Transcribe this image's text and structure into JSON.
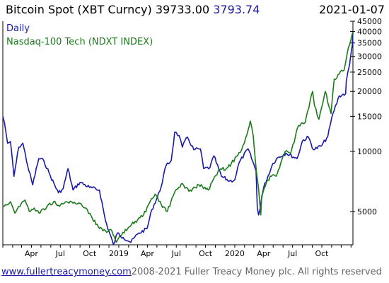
{
  "header": {
    "title": "Bitcoin Spot (XBT Curncy)",
    "value": "39733.00",
    "change": "3793.74",
    "date": "2021-01-07"
  },
  "footer": {
    "link": "www.fullertreacymoney.com",
    "copyright": "2008-2021 Fuller Treacy Money plc. All rights reserved"
  },
  "colors": {
    "bitcoin": "#1a1aa8",
    "nasdaq": "#1c7a1c",
    "axis": "#000000"
  },
  "chart_data": {
    "type": "line",
    "y_scale": "log",
    "ylim": [
      3400,
      45000
    ],
    "xlim": [
      "2018-01-01",
      "2021-01-07"
    ],
    "y_ticks": [
      5000,
      10000,
      15000,
      20000,
      25000,
      30000,
      35000,
      40000,
      45000
    ],
    "x_ticks": [
      {
        "label": "Apr",
        "date": "2018-04-01"
      },
      {
        "label": "Jul",
        "date": "2018-07-01"
      },
      {
        "label": "Oct",
        "date": "2018-10-01"
      },
      {
        "label": "2019",
        "date": "2019-01-01"
      },
      {
        "label": "Apr",
        "date": "2019-04-01"
      },
      {
        "label": "Jul",
        "date": "2019-07-01"
      },
      {
        "label": "Oct",
        "date": "2019-10-01"
      },
      {
        "label": "2020",
        "date": "2020-01-01"
      },
      {
        "label": "Apr",
        "date": "2020-04-01"
      },
      {
        "label": "Jul",
        "date": "2020-07-01"
      },
      {
        "label": "Oct",
        "date": "2020-10-01"
      }
    ],
    "legend_position": "top-left",
    "series": [
      {
        "name": "Daily",
        "color": "#1a1aa8",
        "points": [
          [
            "2018-01-01",
            15000
          ],
          [
            "2018-01-06",
            14000
          ],
          [
            "2018-01-16",
            11000
          ],
          [
            "2018-01-25",
            11200
          ],
          [
            "2018-02-05",
            7500
          ],
          [
            "2018-02-20",
            10500
          ],
          [
            "2018-03-05",
            11000
          ],
          [
            "2018-03-20",
            8500
          ],
          [
            "2018-04-05",
            6800
          ],
          [
            "2018-04-24",
            9200
          ],
          [
            "2018-05-10",
            9000
          ],
          [
            "2018-05-31",
            7500
          ],
          [
            "2018-06-25",
            6200
          ],
          [
            "2018-07-10",
            6500
          ],
          [
            "2018-07-25",
            8200
          ],
          [
            "2018-08-10",
            6400
          ],
          [
            "2018-09-01",
            7000
          ],
          [
            "2018-10-01",
            6600
          ],
          [
            "2018-11-01",
            6400
          ],
          [
            "2018-11-20",
            4500
          ],
          [
            "2018-12-15",
            3400
          ],
          [
            "2018-12-28",
            3900
          ],
          [
            "2019-01-15",
            3700
          ],
          [
            "2019-02-08",
            3500
          ],
          [
            "2019-03-01",
            3850
          ],
          [
            "2019-03-31",
            4100
          ],
          [
            "2019-04-15",
            5100
          ],
          [
            "2019-05-10",
            6300
          ],
          [
            "2019-05-30",
            8500
          ],
          [
            "2019-06-15",
            9000
          ],
          [
            "2019-06-26",
            12500
          ],
          [
            "2019-07-10",
            12000
          ],
          [
            "2019-07-20",
            10500
          ],
          [
            "2019-08-05",
            11800
          ],
          [
            "2019-08-25",
            10200
          ],
          [
            "2019-09-15",
            10300
          ],
          [
            "2019-09-25",
            8200
          ],
          [
            "2019-10-15",
            8300
          ],
          [
            "2019-10-27",
            9500
          ],
          [
            "2019-11-20",
            7500
          ],
          [
            "2019-12-15",
            7100
          ],
          [
            "2020-01-01",
            7200
          ],
          [
            "2020-01-15",
            8800
          ],
          [
            "2020-02-12",
            10300
          ],
          [
            "2020-03-08",
            8000
          ],
          [
            "2020-03-12",
            5200
          ],
          [
            "2020-03-16",
            4800
          ],
          [
            "2020-04-01",
            6600
          ],
          [
            "2020-04-30",
            8700
          ],
          [
            "2020-05-15",
            9300
          ],
          [
            "2020-06-10",
            9800
          ],
          [
            "2020-07-15",
            9200
          ],
          [
            "2020-08-01",
            11300
          ],
          [
            "2020-08-20",
            11800
          ],
          [
            "2020-09-05",
            10200
          ],
          [
            "2020-10-01",
            10700
          ],
          [
            "2020-10-20",
            11900
          ],
          [
            "2020-11-05",
            15500
          ],
          [
            "2020-11-25",
            19000
          ],
          [
            "2020-12-15",
            19500
          ],
          [
            "2020-12-17",
            22500
          ],
          [
            "2020-12-27",
            27000
          ],
          [
            "2021-01-02",
            32000
          ],
          [
            "2021-01-05",
            34000
          ],
          [
            "2021-01-07",
            39733
          ]
        ]
      },
      {
        "name": "Nasdaq-100 Tech (NDXT INDEX)",
        "color": "#1c7a1c",
        "points": [
          [
            "2018-01-01",
            5300
          ],
          [
            "2018-01-25",
            5600
          ],
          [
            "2018-02-08",
            4900
          ],
          [
            "2018-02-20",
            5300
          ],
          [
            "2018-03-12",
            5700
          ],
          [
            "2018-03-25",
            5000
          ],
          [
            "2018-04-10",
            5200
          ],
          [
            "2018-04-25",
            4900
          ],
          [
            "2018-05-20",
            5300
          ],
          [
            "2018-06-10",
            5600
          ],
          [
            "2018-06-28",
            5300
          ],
          [
            "2018-07-20",
            5600
          ],
          [
            "2018-08-10",
            5500
          ],
          [
            "2018-08-31",
            5500
          ],
          [
            "2018-09-20",
            5200
          ],
          [
            "2018-10-10",
            4600
          ],
          [
            "2018-10-28",
            4200
          ],
          [
            "2018-11-20",
            4000
          ],
          [
            "2018-12-10",
            4000
          ],
          [
            "2018-12-24",
            3500
          ],
          [
            "2019-01-10",
            3800
          ],
          [
            "2019-02-10",
            4300
          ],
          [
            "2019-03-20",
            4800
          ],
          [
            "2019-04-25",
            6100
          ],
          [
            "2019-05-15",
            5400
          ],
          [
            "2019-06-03",
            5000
          ],
          [
            "2019-06-25",
            6200
          ],
          [
            "2019-07-20",
            6900
          ],
          [
            "2019-08-10",
            6300
          ],
          [
            "2019-09-10",
            6800
          ],
          [
            "2019-10-10",
            6400
          ],
          [
            "2019-11-10",
            8000
          ],
          [
            "2019-12-10",
            8300
          ],
          [
            "2020-01-10",
            9500
          ],
          [
            "2020-01-31",
            11000
          ],
          [
            "2020-02-19",
            14200
          ],
          [
            "2020-02-28",
            12000
          ],
          [
            "2020-03-09",
            8000
          ],
          [
            "2020-03-16",
            6500
          ],
          [
            "2020-03-23",
            4800
          ],
          [
            "2020-03-26",
            6000
          ],
          [
            "2020-04-10",
            7000
          ],
          [
            "2020-04-25",
            7500
          ],
          [
            "2020-05-10",
            7500
          ],
          [
            "2020-06-08",
            10000
          ],
          [
            "2020-06-25",
            9800
          ],
          [
            "2020-07-20",
            13500
          ],
          [
            "2020-08-10",
            14000
          ],
          [
            "2020-09-02",
            20000
          ],
          [
            "2020-09-08",
            17000
          ],
          [
            "2020-09-22",
            14500
          ],
          [
            "2020-10-12",
            20000
          ],
          [
            "2020-10-30",
            15500
          ],
          [
            "2020-11-09",
            23000
          ],
          [
            "2020-11-25",
            24500
          ],
          [
            "2020-12-10",
            25500
          ],
          [
            "2020-12-20",
            31000
          ],
          [
            "2020-12-31",
            36000
          ],
          [
            "2021-01-05",
            39000
          ],
          [
            "2021-01-07",
            39500
          ]
        ]
      }
    ]
  }
}
